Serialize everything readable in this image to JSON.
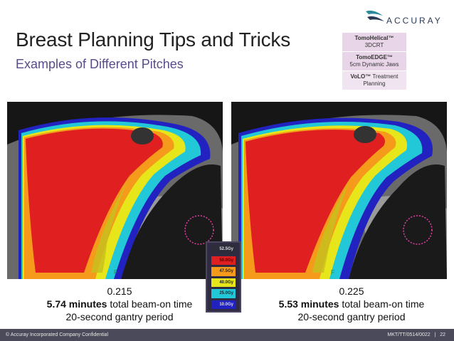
{
  "header": {
    "title": "Breast Planning Tips and Tricks",
    "subtitle": "Examples of Different Pitches",
    "logo_text": "ACCURAY"
  },
  "tags": [
    {
      "line1": "TomoHelical™",
      "line2": "3DCRT"
    },
    {
      "line1": "TomoEDGE™",
      "line2": "5cm Dynamic Jaws"
    },
    {
      "line1": "VoLO™",
      "line2": "Treatment Planning"
    }
  ],
  "legend": {
    "levels": [
      "52.5Gy",
      "50.0Gy",
      "47.5Gy",
      "40.0Gy",
      "25.0Gy",
      "10.0Gy"
    ],
    "colors": [
      "#2c2c3a",
      "#e02020",
      "#f59a1a",
      "#e6e61a",
      "#23c8d8",
      "#2222c0"
    ]
  },
  "images": [
    {
      "pitch": "0.215",
      "time_value": "5.74 minutes",
      "time_suffix": " total beam-on time",
      "gantry": "20-second gantry period",
      "marker": "F"
    },
    {
      "pitch": "0.225",
      "time_value": "5.53 minutes",
      "time_suffix": " total beam-on time",
      "gantry": "20-second gantry period",
      "marker": "F"
    }
  ],
  "footer": {
    "left": "© Accuray Incorporated Company Confidential",
    "doc_id": "MKT/TT/0514/0022",
    "separator": "|",
    "page": "22"
  }
}
